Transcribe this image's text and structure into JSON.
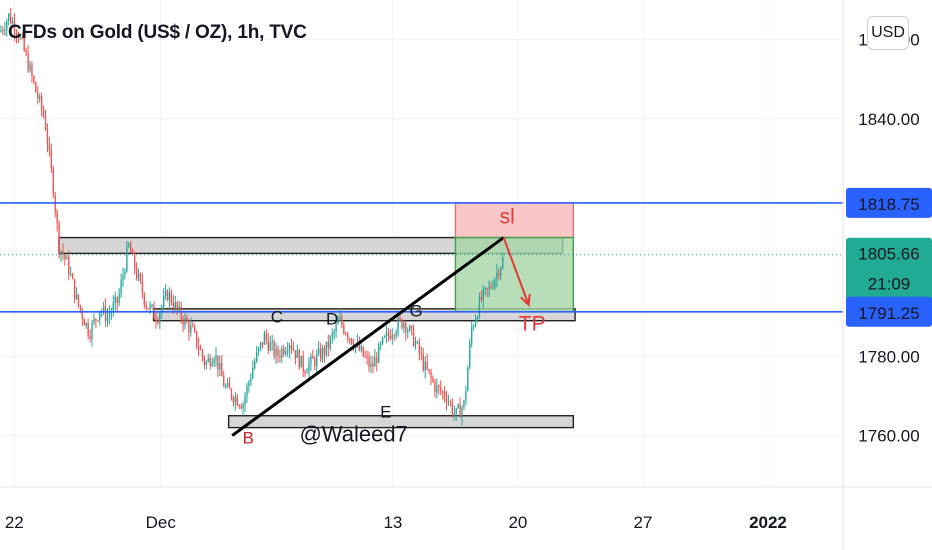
{
  "header": {
    "title": "CFDs on Gold (US$ / OZ), 1h, TVC",
    "currency_button": "USD"
  },
  "colors": {
    "up": "#26a69a",
    "down": "#ef5350",
    "level_line": "#2962ff",
    "price_badge": "#22ab94",
    "level_badge": "#2962ff",
    "sl_zone": "#f8b9b9",
    "tp_zone": "#a5d6a7",
    "zone_gray": "#c8c8c8"
  },
  "chart_data": {
    "type": "candlestick",
    "title": "CFDs on Gold (US$ / OZ), 1h, TVC",
    "ylim": [
      1747,
      1870
    ],
    "y_ticks": [
      {
        "value": 1860,
        "label": "1860.00"
      },
      {
        "value": 1840,
        "label": "1840.00"
      },
      {
        "value": 1780,
        "label": "1780.00"
      },
      {
        "value": 1760,
        "label": "1760.00"
      }
    ],
    "x_ticks": [
      {
        "x": 0.8,
        "label": "22"
      },
      {
        "x": 9.0,
        "label": "Dec"
      },
      {
        "x": 22.0,
        "label": "13"
      },
      {
        "x": 29.0,
        "label": "20"
      },
      {
        "x": 36.0,
        "label": "27"
      },
      {
        "x": 43.0,
        "label": "2022"
      }
    ],
    "xlim": [
      0,
      47.2
    ],
    "price_path": [
      [
        0,
        1862
      ],
      [
        0.5,
        1866
      ],
      [
        1,
        1862
      ],
      [
        1.5,
        1855
      ],
      [
        2,
        1847
      ],
      [
        2.5,
        1840
      ],
      [
        3,
        1822
      ],
      [
        3.3,
        1808
      ],
      [
        3.8,
        1803
      ],
      [
        4.3,
        1794
      ],
      [
        5,
        1786
      ],
      [
        5.6,
        1792
      ],
      [
        6,
        1790
      ],
      [
        6.6,
        1794
      ],
      [
        7.2,
        1808
      ],
      [
        7.7,
        1800
      ],
      [
        8.2,
        1793
      ],
      [
        8.8,
        1790
      ],
      [
        9.4,
        1796
      ],
      [
        10,
        1791
      ],
      [
        10.8,
        1786
      ],
      [
        11.5,
        1778
      ],
      [
        12,
        1781
      ],
      [
        12.6,
        1772
      ],
      [
        13.1,
        1770
      ],
      [
        13.6,
        1768
      ],
      [
        14.2,
        1778
      ],
      [
        14.8,
        1785
      ],
      [
        15.5,
        1780
      ],
      [
        16.2,
        1784
      ],
      [
        17,
        1777
      ],
      [
        17.6,
        1779
      ],
      [
        18.3,
        1782
      ],
      [
        19,
        1789
      ],
      [
        19.6,
        1785
      ],
      [
        20.2,
        1781
      ],
      [
        20.8,
        1777
      ],
      [
        21.4,
        1783
      ],
      [
        22,
        1787
      ],
      [
        22.6,
        1789
      ],
      [
        23.2,
        1784
      ],
      [
        23.8,
        1777
      ],
      [
        24.4,
        1772
      ],
      [
        25,
        1770
      ],
      [
        25.5,
        1765
      ],
      [
        26,
        1768
      ],
      [
        26.4,
        1787
      ],
      [
        26.9,
        1794
      ],
      [
        27.4,
        1797
      ],
      [
        28.2,
        1805
      ]
    ],
    "horizontal_levels": [
      1818.75,
      1791.25
    ],
    "current_price": 1805.66,
    "last_price_label": "1805.66",
    "countdown": "21:09",
    "level_labels": [
      "1818.75",
      "1791.25"
    ],
    "zones": [
      {
        "kind": "gray",
        "x0": 3.3,
        "x1": 31.5,
        "y0": 1806,
        "y1": 1810
      },
      {
        "kind": "gray",
        "x0": 8.6,
        "x1": 32.2,
        "y0": 1789,
        "y1": 1792
      },
      {
        "kind": "gray",
        "x0": 12.8,
        "x1": 32.1,
        "y0": 1762,
        "y1": 1765
      },
      {
        "kind": "sl",
        "x0": 25.5,
        "x1": 32.1,
        "y0": 1810,
        "y1": 1818.75
      },
      {
        "kind": "tp",
        "x0": 25.5,
        "x1": 32.1,
        "y0": 1791.25,
        "y1": 1810
      }
    ],
    "trendline": [
      [
        13,
        1760
      ],
      [
        28.2,
        1810
      ]
    ],
    "arrow": [
      [
        28.2,
        1810
      ],
      [
        29.6,
        1793
      ]
    ],
    "annotations": [
      {
        "text": "sl",
        "x": 28.4,
        "y": 1813.5,
        "color": "#e53935"
      },
      {
        "text": "TP",
        "x": 29.8,
        "y": 1786.5,
        "color": "#e53935"
      },
      {
        "text": "B",
        "x": 13.9,
        "y": 1758,
        "color": "#c62828"
      },
      {
        "text": "C",
        "x": 15.5,
        "y": 1788.5,
        "color": "#131722"
      },
      {
        "text": "D",
        "x": 18.6,
        "y": 1788,
        "color": "#131722"
      },
      {
        "text": "G",
        "x": 23.3,
        "y": 1790,
        "color": "#131722"
      },
      {
        "text": "E",
        "x": 21.6,
        "y": 1764.5,
        "color": "#131722"
      },
      {
        "text": "@Waleed7",
        "x": 19.8,
        "y": 1758.5,
        "color": "#131722"
      }
    ]
  }
}
